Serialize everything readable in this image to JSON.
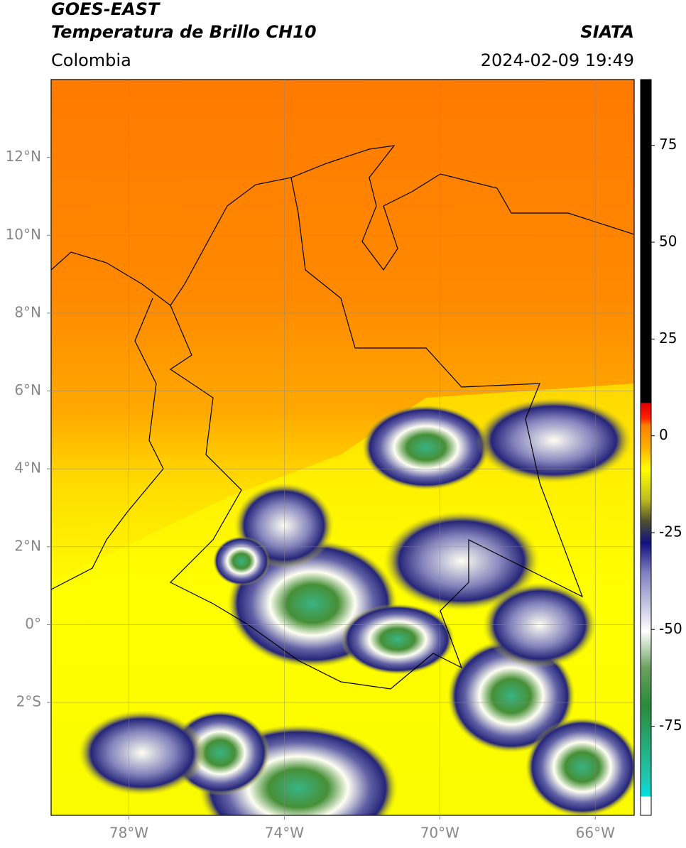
{
  "header": {
    "title": "GOES-EAST",
    "subtitle": "Temperatura de Brillo CH10",
    "source": "SIATA",
    "region": "Colombia",
    "datetime": "2024-02-09 19:49"
  },
  "map": {
    "lonlim": [
      -80,
      -65
    ],
    "latlim": [
      -4.9,
      14
    ],
    "lon_ticks": [
      {
        "value": -78,
        "label": "78°W"
      },
      {
        "value": -74,
        "label": "74°W"
      },
      {
        "value": -70,
        "label": "70°W"
      },
      {
        "value": -66,
        "label": "66°W"
      }
    ],
    "lat_ticks": [
      {
        "value": 12,
        "label": "12°N"
      },
      {
        "value": 10,
        "label": "10°N"
      },
      {
        "value": 8,
        "label": "8°N"
      },
      {
        "value": 6,
        "label": "6°N"
      },
      {
        "value": 4,
        "label": "4°N"
      },
      {
        "value": 2,
        "label": "2°N"
      },
      {
        "value": 0,
        "label": "0°"
      },
      {
        "value": -2,
        "label": "2°S"
      }
    ]
  },
  "colorbar": {
    "lim": [
      -98,
      92
    ],
    "ticks": [
      75,
      50,
      25,
      0,
      -25,
      -50,
      -75
    ]
  }
}
